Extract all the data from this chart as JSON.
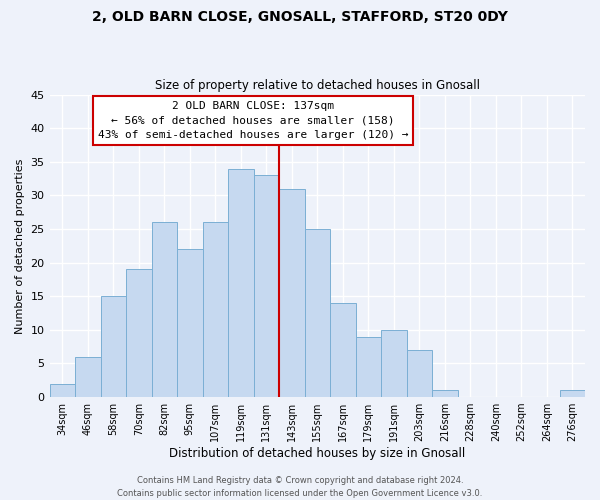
{
  "title": "2, OLD BARN CLOSE, GNOSALL, STAFFORD, ST20 0DY",
  "subtitle": "Size of property relative to detached houses in Gnosall",
  "xlabel": "Distribution of detached houses by size in Gnosall",
  "ylabel": "Number of detached properties",
  "bar_labels": [
    "34sqm",
    "46sqm",
    "58sqm",
    "70sqm",
    "82sqm",
    "95sqm",
    "107sqm",
    "119sqm",
    "131sqm",
    "143sqm",
    "155sqm",
    "167sqm",
    "179sqm",
    "191sqm",
    "203sqm",
    "216sqm",
    "228sqm",
    "240sqm",
    "252sqm",
    "264sqm",
    "276sqm"
  ],
  "bar_values": [
    2,
    6,
    15,
    19,
    26,
    22,
    26,
    34,
    33,
    31,
    25,
    14,
    9,
    10,
    7,
    1,
    0,
    0,
    0,
    0,
    1
  ],
  "bar_color": "#c6d9f0",
  "bar_edge_color": "#7bafd4",
  "vline_x": 8.5,
  "vline_color": "#cc0000",
  "ylim": [
    0,
    45
  ],
  "yticks": [
    0,
    5,
    10,
    15,
    20,
    25,
    30,
    35,
    40,
    45
  ],
  "annotation_title": "2 OLD BARN CLOSE: 137sqm",
  "annotation_line1": "← 56% of detached houses are smaller (158)",
  "annotation_line2": "43% of semi-detached houses are larger (120) →",
  "annotation_box_color": "#ffffff",
  "annotation_box_edge": "#cc0000",
  "footer1": "Contains HM Land Registry data © Crown copyright and database right 2024.",
  "footer2": "Contains public sector information licensed under the Open Government Licence v3.0.",
  "background_color": "#eef2fa",
  "grid_color": "#ffffff"
}
